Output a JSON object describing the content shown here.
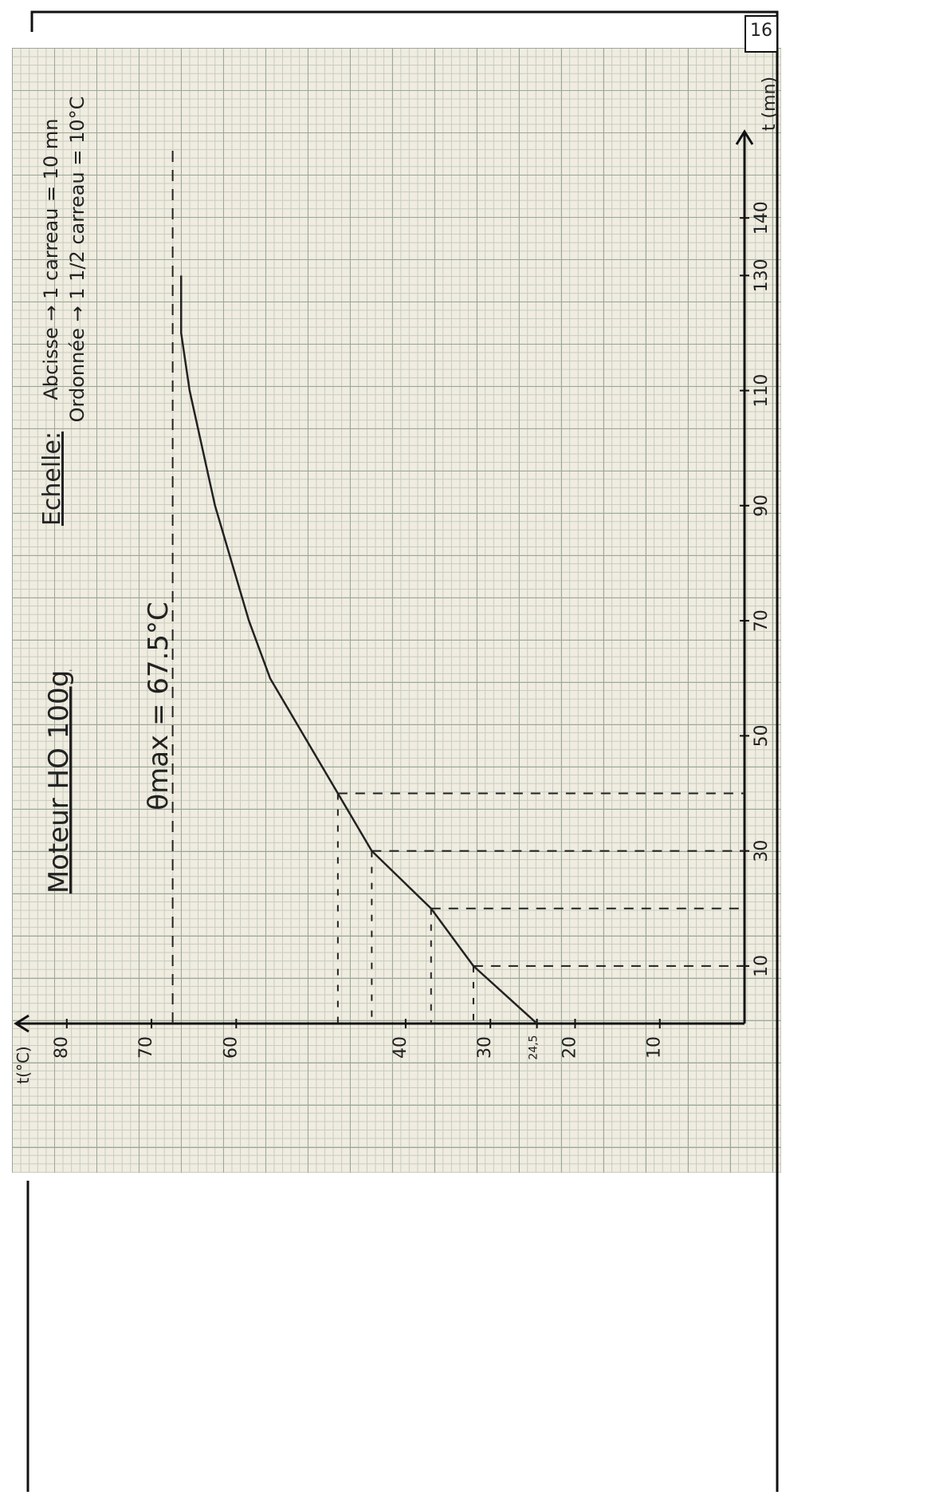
{
  "page_number": "16",
  "chart_data": {
    "type": "line",
    "title": "Moteur HO 100g",
    "scale_title": "Echelle:",
    "scale_notes": [
      "Abcisse → 1 carreau = 10 mn",
      "Ordonnée → 1 1/2 carreau = 10°C"
    ],
    "annotation": "θmax = 67.5°C",
    "x_label": "t (mn)",
    "y_label": "t(°C)",
    "x": [
      0,
      10,
      20,
      30,
      40,
      50,
      60,
      70,
      80,
      90,
      100,
      110,
      120,
      130
    ],
    "values": [
      24.5,
      32,
      37,
      44,
      48,
      52,
      56,
      58.5,
      60.5,
      62.5,
      64,
      65.5,
      66.5,
      66.5
    ],
    "color": "#222222",
    "ymax_line": 67.5,
    "xlim": [
      0,
      155
    ],
    "ylim": [
      0,
      86
    ],
    "xticks": [
      10,
      30,
      50,
      70,
      90,
      110,
      130,
      140
    ],
    "yticks": [
      10,
      20,
      {
        "value": 24.5,
        "label": "24,5"
      },
      30,
      40,
      60,
      70,
      80
    ],
    "guides": [
      10,
      20,
      30,
      40
    ]
  }
}
